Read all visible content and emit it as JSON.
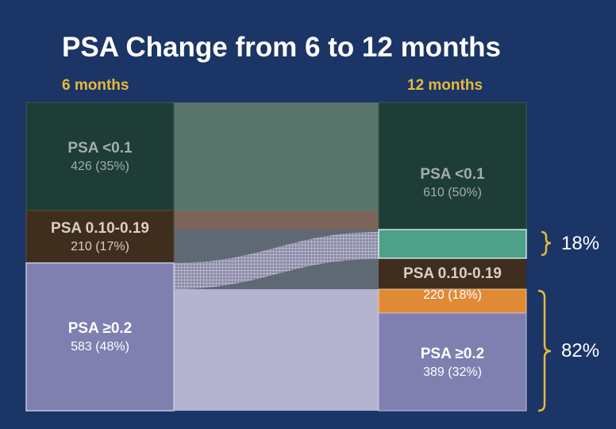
{
  "title": "PSA Change from 6 to 12 months",
  "columns": {
    "left": "6 months",
    "right": "12 months"
  },
  "colors": {
    "background": "#1b3566",
    "psa_lt_01": "#1e3d36",
    "psa_010_019": "#3f2e1e",
    "psa_ge_02": "#7f7fb0",
    "orange": "#e18a36",
    "teal": "#4fa088",
    "bracket": "#e5b93a"
  },
  "left_groups": [
    {
      "name": "PSA <0.1",
      "count": "426 (35%)"
    },
    {
      "name": "PSA 0.10-0.19",
      "count": "210 (17%)"
    },
    {
      "name": "PSA ≥0.2",
      "count": "583 (48%)"
    }
  ],
  "right_groups": [
    {
      "name": "PSA <0.1",
      "count": "610 (50%)"
    },
    {
      "name": "PSA 0.10-0.19",
      "count": "220 (18%)"
    },
    {
      "name": "PSA ≥0.2",
      "count": "389 (32%)"
    }
  ],
  "brackets": {
    "upper": "18%",
    "lower": "82%"
  }
}
